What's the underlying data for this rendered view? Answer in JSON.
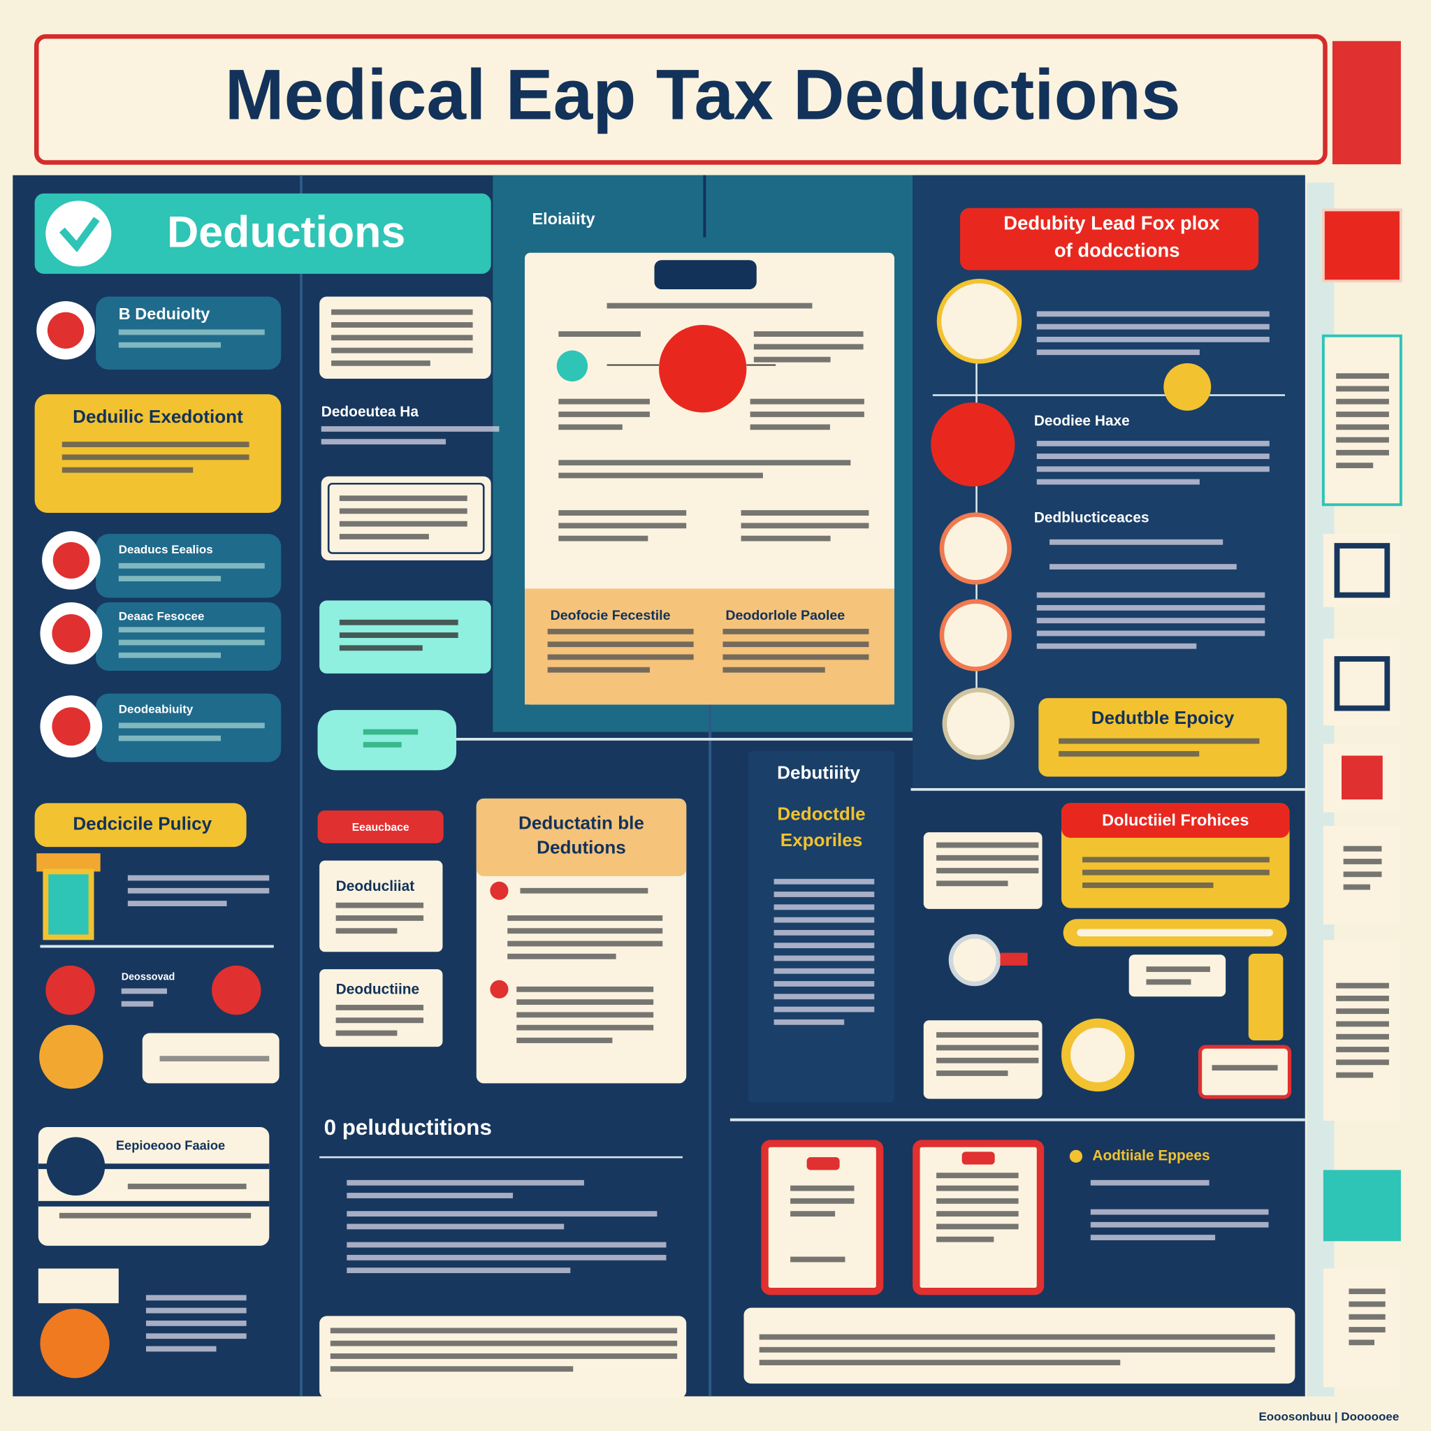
{
  "header": {
    "title": "Medical Eap Tax Deductions"
  },
  "left": {
    "banner": "Deductions",
    "items": [
      "B Deduiolty",
      "Deaducs Eealios",
      "Deaac Fesocee",
      "Deodeabiuity"
    ],
    "highlight": "Deduilic Exedotiont",
    "policy": "Dedcicile Pulicy",
    "contact": "Deossovad",
    "employee": "Eepioeooo Faaioe"
  },
  "middle": {
    "eligibility": "Eloiaiity",
    "subhead": "Dedoeutea Ha",
    "tag": "Eeaucbace",
    "cards": [
      "Deoducliiat",
      "Deoductiine"
    ],
    "feature": [
      "Deductatin ble",
      "Dedutions"
    ],
    "section": "0 peluductitions",
    "panel": [
      "Deofocie Fecestile",
      "Deodorlole Paolee"
    ]
  },
  "right": {
    "banner": [
      "Dedubity Lead Fox plox",
      "of dodcctions"
    ],
    "heads": [
      "Deodiee Haxe",
      "Dedblucticeaces"
    ],
    "policy": "Dedutble Epoicy",
    "sidebar": [
      "Debutiiity",
      "Dedoctdle",
      "Exporiles"
    ],
    "practices": "Doluctiiel Frohices",
    "expenses": "Aodtiiale Eppees"
  },
  "footer": "Eooosonbuu | Doooooee"
}
